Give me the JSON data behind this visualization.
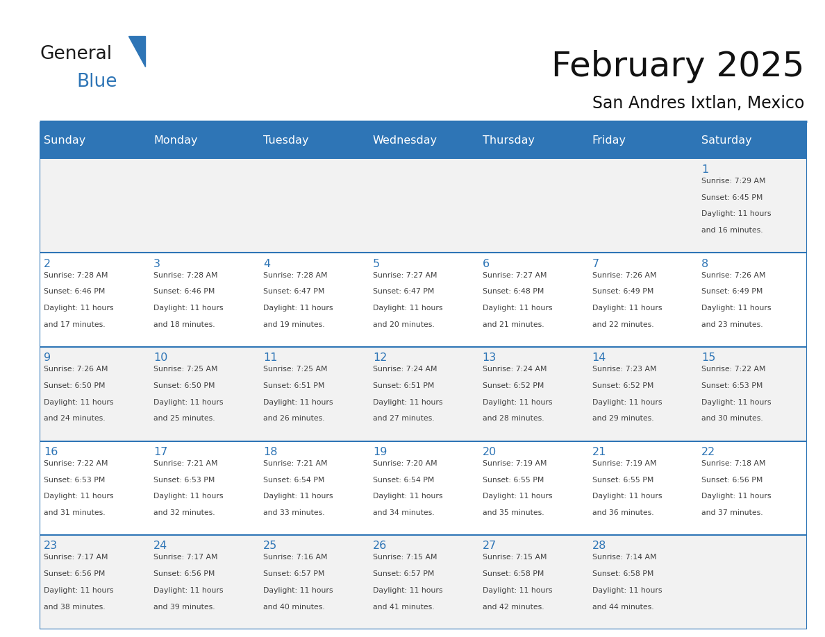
{
  "title": "February 2025",
  "subtitle": "San Andres Ixtlan, Mexico",
  "header_bg_color": "#2E75B6",
  "header_text_color": "#FFFFFF",
  "day_names": [
    "Sunday",
    "Monday",
    "Tuesday",
    "Wednesday",
    "Thursday",
    "Friday",
    "Saturday"
  ],
  "background_color": "#FFFFFF",
  "cell_bg_even": "#F2F2F2",
  "cell_bg_odd": "#FFFFFF",
  "divider_color": "#2E75B6",
  "date_color": "#2E75B6",
  "text_color": "#404040",
  "logo_general_color": "#1a1a1a",
  "logo_blue_color": "#2E75B6",
  "weeks": [
    [
      {
        "day": null,
        "info": null
      },
      {
        "day": null,
        "info": null
      },
      {
        "day": null,
        "info": null
      },
      {
        "day": null,
        "info": null
      },
      {
        "day": null,
        "info": null
      },
      {
        "day": null,
        "info": null
      },
      {
        "day": 1,
        "info": "Sunrise: 7:29 AM\nSunset: 6:45 PM\nDaylight: 11 hours\nand 16 minutes."
      }
    ],
    [
      {
        "day": 2,
        "info": "Sunrise: 7:28 AM\nSunset: 6:46 PM\nDaylight: 11 hours\nand 17 minutes."
      },
      {
        "day": 3,
        "info": "Sunrise: 7:28 AM\nSunset: 6:46 PM\nDaylight: 11 hours\nand 18 minutes."
      },
      {
        "day": 4,
        "info": "Sunrise: 7:28 AM\nSunset: 6:47 PM\nDaylight: 11 hours\nand 19 minutes."
      },
      {
        "day": 5,
        "info": "Sunrise: 7:27 AM\nSunset: 6:47 PM\nDaylight: 11 hours\nand 20 minutes."
      },
      {
        "day": 6,
        "info": "Sunrise: 7:27 AM\nSunset: 6:48 PM\nDaylight: 11 hours\nand 21 minutes."
      },
      {
        "day": 7,
        "info": "Sunrise: 7:26 AM\nSunset: 6:49 PM\nDaylight: 11 hours\nand 22 minutes."
      },
      {
        "day": 8,
        "info": "Sunrise: 7:26 AM\nSunset: 6:49 PM\nDaylight: 11 hours\nand 23 minutes."
      }
    ],
    [
      {
        "day": 9,
        "info": "Sunrise: 7:26 AM\nSunset: 6:50 PM\nDaylight: 11 hours\nand 24 minutes."
      },
      {
        "day": 10,
        "info": "Sunrise: 7:25 AM\nSunset: 6:50 PM\nDaylight: 11 hours\nand 25 minutes."
      },
      {
        "day": 11,
        "info": "Sunrise: 7:25 AM\nSunset: 6:51 PM\nDaylight: 11 hours\nand 26 minutes."
      },
      {
        "day": 12,
        "info": "Sunrise: 7:24 AM\nSunset: 6:51 PM\nDaylight: 11 hours\nand 27 minutes."
      },
      {
        "day": 13,
        "info": "Sunrise: 7:24 AM\nSunset: 6:52 PM\nDaylight: 11 hours\nand 28 minutes."
      },
      {
        "day": 14,
        "info": "Sunrise: 7:23 AM\nSunset: 6:52 PM\nDaylight: 11 hours\nand 29 minutes."
      },
      {
        "day": 15,
        "info": "Sunrise: 7:22 AM\nSunset: 6:53 PM\nDaylight: 11 hours\nand 30 minutes."
      }
    ],
    [
      {
        "day": 16,
        "info": "Sunrise: 7:22 AM\nSunset: 6:53 PM\nDaylight: 11 hours\nand 31 minutes."
      },
      {
        "day": 17,
        "info": "Sunrise: 7:21 AM\nSunset: 6:53 PM\nDaylight: 11 hours\nand 32 minutes."
      },
      {
        "day": 18,
        "info": "Sunrise: 7:21 AM\nSunset: 6:54 PM\nDaylight: 11 hours\nand 33 minutes."
      },
      {
        "day": 19,
        "info": "Sunrise: 7:20 AM\nSunset: 6:54 PM\nDaylight: 11 hours\nand 34 minutes."
      },
      {
        "day": 20,
        "info": "Sunrise: 7:19 AM\nSunset: 6:55 PM\nDaylight: 11 hours\nand 35 minutes."
      },
      {
        "day": 21,
        "info": "Sunrise: 7:19 AM\nSunset: 6:55 PM\nDaylight: 11 hours\nand 36 minutes."
      },
      {
        "day": 22,
        "info": "Sunrise: 7:18 AM\nSunset: 6:56 PM\nDaylight: 11 hours\nand 37 minutes."
      }
    ],
    [
      {
        "day": 23,
        "info": "Sunrise: 7:17 AM\nSunset: 6:56 PM\nDaylight: 11 hours\nand 38 minutes."
      },
      {
        "day": 24,
        "info": "Sunrise: 7:17 AM\nSunset: 6:56 PM\nDaylight: 11 hours\nand 39 minutes."
      },
      {
        "day": 25,
        "info": "Sunrise: 7:16 AM\nSunset: 6:57 PM\nDaylight: 11 hours\nand 40 minutes."
      },
      {
        "day": 26,
        "info": "Sunrise: 7:15 AM\nSunset: 6:57 PM\nDaylight: 11 hours\nand 41 minutes."
      },
      {
        "day": 27,
        "info": "Sunrise: 7:15 AM\nSunset: 6:58 PM\nDaylight: 11 hours\nand 42 minutes."
      },
      {
        "day": 28,
        "info": "Sunrise: 7:14 AM\nSunset: 6:58 PM\nDaylight: 11 hours\nand 44 minutes."
      },
      {
        "day": null,
        "info": null
      }
    ]
  ]
}
